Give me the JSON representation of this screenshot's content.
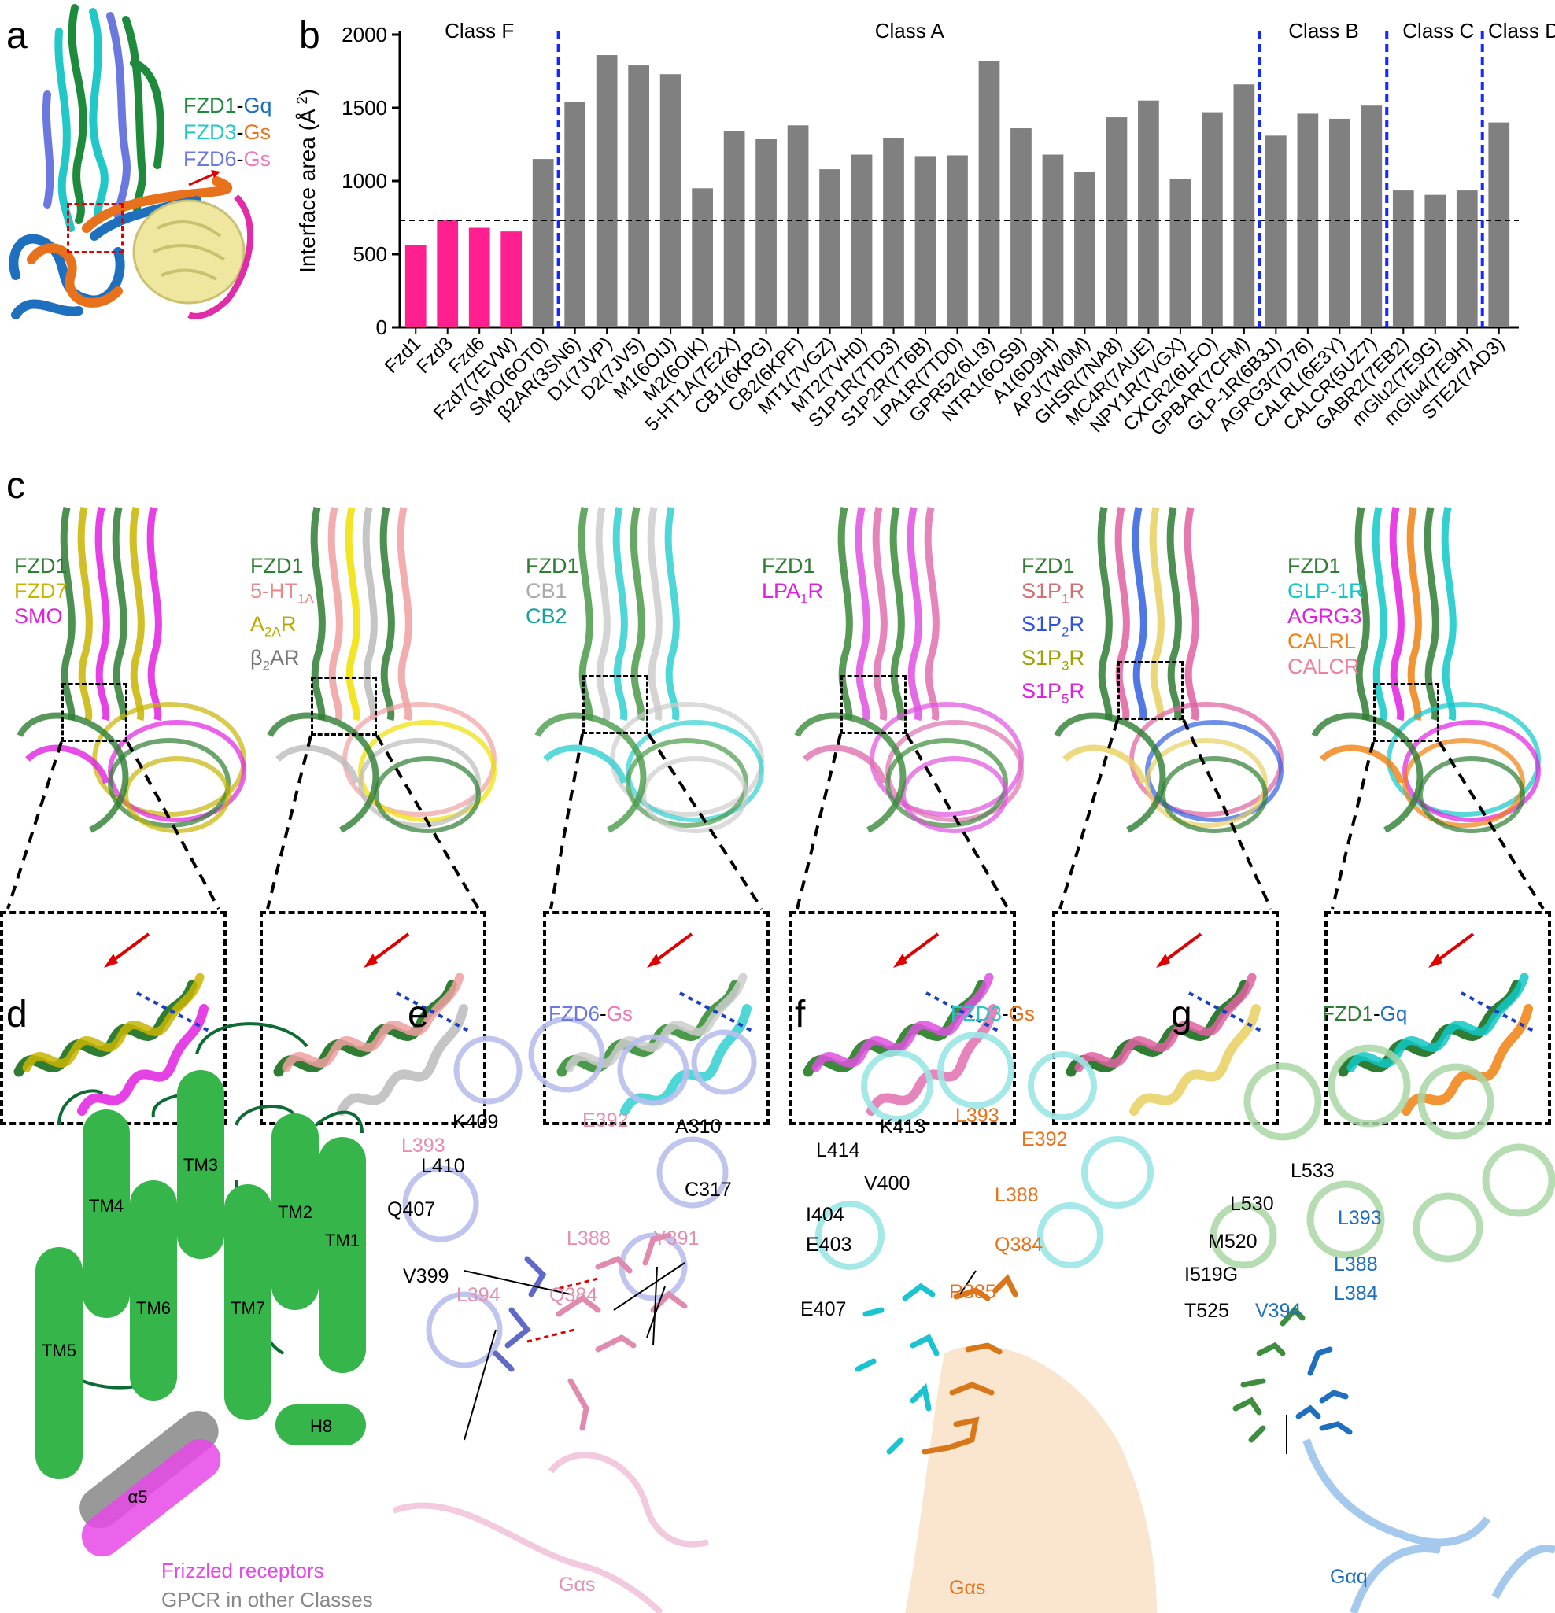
{
  "panels": {
    "a": {
      "label": "a",
      "legend": [
        {
          "r": "FZD1",
          "r_color": "#1e8a3c",
          "g": "Gq",
          "g_color": "#1f6fbf"
        },
        {
          "r": "FZD3",
          "r_color": "#22c7c7",
          "g": "Gs",
          "g_color": "#e8711c"
        },
        {
          "r": "FZD6",
          "r_color": "#6b78e0",
          "g": "Gs",
          "g_color": "#f07ab8"
        }
      ]
    },
    "b": {
      "label": "b"
    },
    "c": {
      "label": "c",
      "groups": [
        {
          "items": [
            {
              "t": "FZD1",
              "c": "#2e7d32"
            },
            {
              "t": "FZD7",
              "c": "#c8b400"
            },
            {
              "t": "SMO",
              "c": "#e020e0"
            }
          ]
        },
        {
          "items": [
            {
              "t": "FZD1",
              "c": "#2e7d32"
            },
            {
              "t": "5-HT",
              "sub": "1A",
              "c": "#e88a8a"
            },
            {
              "t": "A",
              "sub": "2A",
              "t2": "R",
              "c": "#b8a800"
            },
            {
              "t": "β",
              "sub": "2",
              "t2": "AR",
              "c": "#777777"
            }
          ]
        },
        {
          "items": [
            {
              "t": "FZD1",
              "c": "#2e7d32"
            },
            {
              "t": "CB1",
              "c": "#aaaaaa"
            },
            {
              "t": "CB2",
              "c": "#16a0a0"
            }
          ]
        },
        {
          "items": [
            {
              "t": "FZD1",
              "c": "#2e7d32"
            },
            {
              "t": "LPA",
              "sub": "1",
              "t2": "R",
              "c": "#e020e0"
            }
          ]
        },
        {
          "items": [
            {
              "t": "FZD1",
              "c": "#2e7d32"
            },
            {
              "t": "S1P",
              "sub": "1",
              "t2": "R",
              "c": "#d07070"
            },
            {
              "t": "S1P",
              "sub": "2",
              "t2": "R",
              "c": "#3050e0"
            },
            {
              "t": "S1P",
              "sub": "3",
              "t2": "R",
              "c": "#a0a000"
            },
            {
              "t": "S1P",
              "sub": "5",
              "t2": "R",
              "c": "#e020e0"
            }
          ]
        },
        {
          "items": [
            {
              "t": "FZD1",
              "c": "#2e7d32"
            },
            {
              "t": "GLP-1R",
              "c": "#10c8c8"
            },
            {
              "t": "AGRG3",
              "c": "#e020e0"
            },
            {
              "t": "CALRL",
              "c": "#f08010"
            },
            {
              "t": "CALCR",
              "c": "#f080a0"
            }
          ]
        }
      ]
    },
    "d": {
      "label": "d",
      "helices": [
        "TM5",
        "TM4",
        "TM6",
        "TM3",
        "TM7",
        "TM2",
        "TM1",
        "H8",
        "α5"
      ],
      "legend_frizzled": "Frizzled receptors",
      "legend_other": "GPCR in other Classes"
    },
    "e": {
      "label": "e",
      "title_r": "FZD6",
      "title_sep": "-",
      "title_g": "Gs",
      "residues_black": [
        "K409",
        "L410",
        "Q407",
        "V399",
        "A310",
        "C317"
      ],
      "residues_pink": [
        "L393",
        "E392",
        "L388",
        "Y391",
        "L394",
        "Q384"
      ],
      "galpha": "Gαs"
    },
    "f": {
      "label": "f",
      "title_r": "FZD3",
      "title_sep": "-",
      "title_g": "Gs",
      "residues_black": [
        "K413",
        "L414",
        "V400",
        "I404",
        "E403",
        "E407"
      ],
      "residues_orange": [
        "L393",
        "E392",
        "L388",
        "Q384",
        "R385"
      ],
      "galpha": "Gαs"
    },
    "g": {
      "label": "g",
      "title_r": "FZD1",
      "title_sep": "-",
      "title_g": "Gq",
      "residues_black": [
        "L533",
        "L530",
        "M520",
        "I519G",
        "T525"
      ],
      "residues_blue": [
        "L393",
        "L388",
        "L384",
        "V394"
      ],
      "galpha": "Gαq"
    }
  },
  "chart_data": {
    "type": "bar",
    "ylabel": "Interface area (Å 2)",
    "ylabel_main": "Interface area (Å",
    "ylabel_sup": "2",
    "ylabel_close": ")",
    "ylim": [
      0,
      2000
    ],
    "yticks": [
      "0",
      "500",
      "1000",
      "1500",
      "2000"
    ],
    "reference_line": 730,
    "class_labels": [
      "Class F",
      "Class A",
      "Class B",
      "Class C",
      "Class D"
    ],
    "categories": [
      "Fzd1",
      "Fzd3",
      "Fzd6",
      "Fzd7(7EVW)",
      "SMO(6OT0)",
      "β2AR(3SN6)",
      "D1(7JVP)",
      "D2(7JV5)",
      "M1(6OIJ)",
      "M2(6OIK)",
      "5-HT1A(7E2X)",
      "CB1(6KPG)",
      "CB2(6KPF)",
      "MT1(7VGZ)",
      "MT2(7VH0)",
      "S1P1R(7TD3)",
      "S1P2R(7T6B)",
      "LPA1R(7TD0)",
      "GPR52(6LI3)",
      "NTR1(6OS9)",
      "A1(6D9H)",
      "APJ(7W0M)",
      "GHSR(7NA8)",
      "MC4R(7AUE)",
      "NPY1R(7VGX)",
      "CXCR2(6LFO)",
      "GPBAR(7CFM)",
      "GLP-1R(6B3J)",
      "AGRG3(7D76)",
      "CALRL(6E3Y)",
      "CALCR(5UZ7)",
      "GABR2(7EB2)",
      "mGlu2(7E9G)",
      "mGlu4(7E9H)",
      "STE2(7AD3)"
    ],
    "values": [
      560,
      735,
      680,
      655,
      1150,
      1540,
      1860,
      1790,
      1730,
      950,
      1340,
      1285,
      1380,
      1080,
      1180,
      1295,
      1170,
      1175,
      1820,
      1360,
      1180,
      1060,
      1435,
      1550,
      1015,
      1470,
      1660,
      1310,
      1460,
      1425,
      1515,
      935,
      905,
      935,
      1400
    ],
    "colors": {
      "class_f": "#ff1f8e",
      "other": "#808080",
      "divider": "#1428ff"
    },
    "class_f_count": 4,
    "dividers_after": [
      4,
      26,
      30,
      33
    ]
  }
}
